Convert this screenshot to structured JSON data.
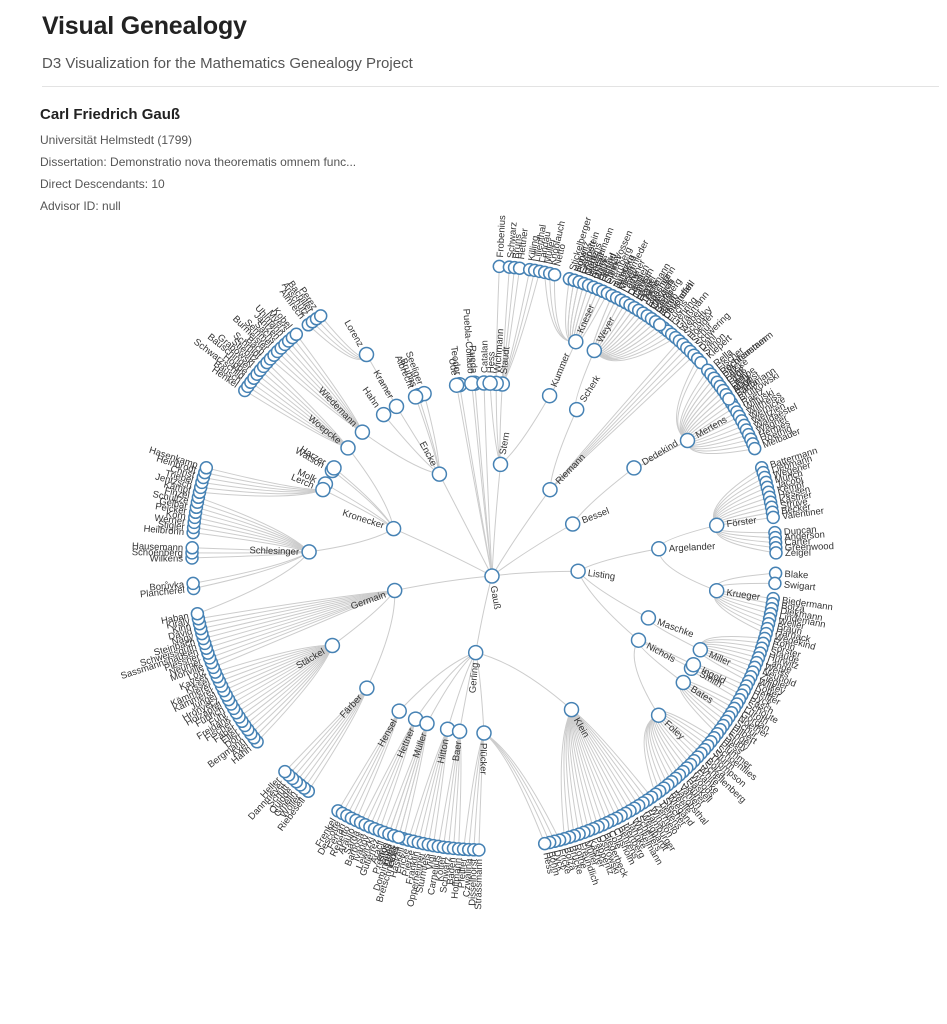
{
  "app": {
    "title": "Visual Genealogy",
    "subtitle": "D3 Visualization for the Mathematics Genealogy Project"
  },
  "selected": {
    "name": "Carl Friedrich Gauß",
    "university": "Universität Helmstedt (1799)",
    "dissertation": "Dissertation: Demonstratio nova theorematis omnem func...",
    "descendants": "Direct Descendants: 10",
    "advisor": "Advisor ID: null"
  },
  "colors": {
    "node_stroke": "#4682b4",
    "node_fill": "#ffffff",
    "link": "#cccccc",
    "text": "#333333"
  },
  "tree": {
    "root": "Gauß",
    "inner": [
      [
        "Gauß",
        1,
        100
      ],
      [
        "Encke",
        1,
        118
      ],
      [
        "Germain",
        1,
        200
      ],
      [
        "Gerling",
        1,
        265
      ],
      [
        "Plücker",
        2,
        270
      ],
      [
        "Listing",
        1,
        352
      ],
      [
        "Bessel",
        1,
        21
      ],
      [
        "Dedekind",
        2,
        31
      ],
      [
        "Riemann",
        1,
        46
      ],
      [
        "Scherk",
        2,
        58
      ],
      [
        "Stern",
        1,
        80
      ],
      [
        "Staudt",
        2,
        84
      ],
      [
        "Wichmann",
        2,
        86
      ],
      [
        "Weyer",
        3,
        62
      ],
      [
        "Kummer",
        2,
        68
      ],
      [
        "Förster",
        3,
        8
      ],
      [
        "Krueger",
        3,
        352
      ],
      [
        "Argelander",
        2,
        3
      ],
      [
        "Maschke",
        2,
        340
      ],
      [
        "Nichols",
        2,
        332
      ],
      [
        "Bates",
        3,
        328
      ],
      [
        "Miller",
        3,
        337
      ],
      [
        "Smith",
        3,
        332
      ],
      [
        "Ingold",
        3,
        333
      ],
      [
        "Foley",
        3,
        318
      ],
      [
        "Klein",
        2,
        300
      ],
      [
        "Kronecker",
        1,
        162
      ],
      [
        "Schlesinger",
        2,
        178
      ],
      [
        "Stäckel",
        2,
        210
      ],
      [
        "Färber",
        2,
        228
      ],
      [
        "Hensel",
        2,
        241
      ],
      [
        "Hettner",
        2,
        247
      ],
      [
        "Müller",
        2,
        251
      ],
      [
        "Hitton",
        2,
        258
      ],
      [
        "Baer",
        2,
        262
      ],
      [
        "Woepcke",
        2,
        141
      ],
      [
        "Watson",
        2,
        150
      ],
      [
        "Harzer",
        2,
        149
      ],
      [
        "Molk",
        2,
        155
      ],
      [
        "Lerch",
        2,
        157
      ],
      [
        "Wiedemann",
        2,
        134
      ],
      [
        "Hahn",
        2,
        125
      ],
      [
        "Kramer",
        2,
        120
      ],
      [
        "Bruhns",
        2,
        112
      ],
      [
        "Seeliger",
        2,
        110
      ],
      [
        "Albrecht",
        2,
        113
      ],
      [
        "Lorenz",
        3,
        120
      ],
      [
        "Teodor",
        2,
        98
      ],
      [
        "Rueda",
        2,
        93
      ],
      [
        "Puebla-Collado",
        2,
        94
      ],
      [
        "Catalan",
        2,
        90
      ],
      [
        "Ude",
        2,
        99
      ],
      [
        "Hess",
        2,
        88
      ],
      [
        "Mertens",
        3,
        30
      ],
      [
        "Kneser",
        3,
        67
      ]
    ],
    "leaves": [
      [
        "Frobenius",
        87
      ],
      [
        "Schwarz",
        85
      ],
      [
        "Bruns",
        84
      ],
      [
        "Hettner",
        83
      ],
      [
        "Killing",
        81
      ],
      [
        "Lilienthal",
        80
      ],
      [
        "Landau",
        79
      ],
      [
        "Müller",
        78
      ],
      [
        "Knoblauch",
        77
      ],
      [
        "Netto",
        76
      ],
      [
        "Stickelberger",
        73
      ],
      [
        "Hurwitz",
        72
      ],
      [
        "Eisenstein",
        71
      ],
      [
        "Mertens",
        70
      ],
      [
        "Kneser",
        69
      ],
      [
        "Rothe",
        68
      ],
      [
        "Hensel",
        67
      ],
      [
        "Steiner",
        66
      ],
      [
        "Ruhberg",
        64
      ],
      [
        "Meyer",
        63
      ],
      [
        "Lamé",
        62
      ],
      [
        "Dehn",
        61
      ],
      [
        "Cantor",
        60
      ],
      [
        "Hamel",
        59
      ],
      [
        "Thiele",
        58
      ],
      [
        "Lipschitz",
        57
      ],
      [
        "Casorati",
        56
      ],
      [
        "Bauer",
        55
      ],
      [
        "Hahn",
        54
      ],
      [
        "Christoffel",
        53
      ],
      [
        "Fuchs",
        52
      ],
      [
        "Gehring",
        51
      ],
      [
        "Graßmann",
        50
      ],
      [
        "Weber",
        49
      ],
      [
        "Schottky",
        48
      ],
      [
        "Hoelder",
        47
      ],
      [
        "Schur",
        46
      ],
      [
        "Schwering",
        45
      ],
      [
        "Dahl",
        44
      ],
      [
        "Simon",
        43
      ],
      [
        "Kiepert",
        42
      ],
      [
        "Pochhammer",
        38
      ],
      [
        "Pitz",
        37
      ],
      [
        "Pym",
        36
      ],
      [
        "Lampe",
        35
      ],
      [
        "August",
        34
      ],
      [
        "Bachmann",
        33
      ],
      [
        "Brutkowski",
        32
      ],
      [
        "Raetz",
        31
      ],
      [
        "Wiltuski",
        30
      ],
      [
        "Wiltheiss",
        29
      ],
      [
        "Wernicke",
        28
      ],
      [
        "Weltzien",
        27
      ],
      [
        "Waldaestel",
        26
      ],
      [
        "Wagner",
        25
      ],
      [
        "Hermes",
        24
      ],
      [
        "Roethig",
        23
      ],
      [
        "Melbauer",
        22
      ],
      [
        "Battermann",
        18
      ],
      [
        "Liebmann",
        17
      ],
      [
        "Wegener",
        16
      ],
      [
        "Münch",
        15
      ],
      [
        "Jacobi",
        14
      ],
      [
        "Kempf",
        13
      ],
      [
        "Hessen",
        12
      ],
      [
        "Kästner",
        11
      ],
      [
        "Struve",
        10
      ],
      [
        "Becker",
        9
      ],
      [
        "Valentiner",
        8
      ],
      [
        "Duncan",
        5
      ],
      [
        "Anderson",
        4
      ],
      [
        "Carter",
        3
      ],
      [
        "Greenwood",
        2
      ],
      [
        "Zeigel",
        1
      ],
      [
        "Blake",
        357
      ],
      [
        "Swigart",
        355
      ],
      [
        "Biedermann",
        352
      ],
      [
        "Bolza",
        351
      ],
      [
        "Diekmann",
        350
      ],
      [
        "Lindemann",
        349
      ],
      [
        "Weiler",
        348
      ],
      [
        "Braun",
        347
      ],
      [
        "Harnack",
        346
      ],
      [
        "Wedekind",
        345
      ],
      [
        "Rohn",
        344
      ],
      [
        "Förster",
        343
      ],
      [
        "Staude",
        342
      ],
      [
        "Hurwitz",
        341
      ],
      [
        "Lange",
        340
      ],
      [
        "Weiss",
        339
      ],
      [
        "Neuhold",
        338
      ],
      [
        "Ziegler",
        337
      ],
      [
        "Wilkey",
        336
      ],
      [
        "Kötter",
        335
      ],
      [
        "Heffter",
        334
      ],
      [
        "Dyck",
        333
      ],
      [
        "Pasch",
        332
      ],
      [
        "Schoute",
        331
      ],
      [
        "Lüroth",
        330
      ],
      [
        "Gordan",
        329
      ],
      [
        "Noether",
        328
      ],
      [
        "Schur",
        327
      ],
      [
        "Hilbert",
        326
      ],
      [
        "Engel",
        325
      ],
      [
        "Study",
        324
      ],
      [
        "Hess",
        323
      ],
      [
        "Plummer",
        322
      ],
      [
        "Schoenflies",
        321
      ],
      [
        "Sturm",
        320
      ],
      [
        "Thompson",
        319
      ],
      [
        "Bolza",
        318
      ],
      [
        "Schellenberg",
        317
      ],
      [
        "White",
        316
      ],
      [
        "Franke",
        315
      ],
      [
        "Woods",
        314
      ],
      [
        "Haskell",
        313
      ],
      [
        "Saurer",
        312
      ],
      [
        "Vahlen",
        311
      ],
      [
        "Jacobsthal",
        310
      ],
      [
        "Beelle",
        309
      ],
      [
        "Wiegand",
        308
      ],
      [
        "Stecher",
        307
      ],
      [
        "Tietjens",
        306
      ],
      [
        "Zermelo",
        305
      ],
      [
        "Winston",
        304
      ],
      [
        "Hamburger",
        303
      ],
      [
        "Weighardt",
        302
      ],
      [
        "Scheffers",
        301
      ],
      [
        "Winkelmann",
        300
      ],
      [
        "Jahnke",
        299
      ],
      [
        "Inertberg",
        298
      ],
      [
        "Behrens",
        297
      ],
      [
        "Chisholm",
        296
      ],
      [
        "Cole",
        295
      ],
      [
        "Biederbeck",
        294
      ],
      [
        "Ostrowski",
        293
      ],
      [
        "Papperitz",
        292
      ],
      [
        "Kasner",
        291
      ],
      [
        "Müller",
        290
      ],
      [
        "Freundlich",
        289
      ],
      [
        "Rothe",
        288
      ],
      [
        "Brücke",
        287
      ],
      [
        "Bolza",
        286
      ],
      [
        "Fricke",
        285
      ],
      [
        "Dyck",
        284
      ],
      [
        "Böhm",
        283
      ],
      [
        "Hess",
        282
      ],
      [
        "Preston",
        251
      ],
      [
        "Helle",
        252
      ],
      [
        "Lexis",
        253
      ],
      [
        "Haskell",
        254
      ],
      [
        "Fricke",
        255
      ],
      [
        "Pierce",
        256
      ],
      [
        "Franklin",
        257
      ],
      [
        "Opperheimer",
        258
      ],
      [
        "Sturmfels",
        259
      ],
      [
        "Vigl",
        260
      ],
      [
        "Carnelius",
        261
      ],
      [
        "Kötter",
        262
      ],
      [
        "Schwarz",
        263
      ],
      [
        "Baden",
        264
      ],
      [
        "Hoffmann",
        265
      ],
      [
        "Pfeiffer",
        266
      ],
      [
        "Czwalina",
        267
      ],
      [
        "Disselhorst",
        268
      ],
      [
        "Strassmann",
        269
      ],
      [
        "Riebesell",
        233
      ],
      [
        "Wöller",
        232
      ],
      [
        "Gmelin",
        231
      ],
      [
        "Quidde",
        230
      ],
      [
        "Schütt",
        229
      ],
      [
        "Dannmeyer",
        228
      ],
      [
        "Heller",
        227
      ],
      [
        "Hahn",
        219
      ],
      [
        "Axel",
        218
      ],
      [
        "Bergmann",
        217
      ],
      [
        "Dörr",
        216
      ],
      [
        "Eller",
        215
      ],
      [
        "Faber",
        214
      ],
      [
        "Fischer",
        213
      ],
      [
        "Freidank",
        212
      ],
      [
        "Fuhr",
        211
      ],
      [
        "Fuhrich",
        210
      ],
      [
        "Holzapfel",
        209
      ],
      [
        "Hronyecz",
        208
      ],
      [
        "Jungel",
        207
      ],
      [
        "Kämmerer",
        206
      ],
      [
        "Kämmerer",
        205
      ],
      [
        "Kissel",
        204
      ],
      [
        "Kayser",
        203
      ],
      [
        "Lotz",
        202
      ],
      [
        "Monville",
        201
      ],
      [
        "Neumer",
        200
      ],
      [
        "Plessner",
        199
      ],
      [
        "Sassmannshausen",
        198
      ],
      [
        "Schweissguth",
        197
      ],
      [
        "Steinbach",
        196
      ],
      [
        "Nagy",
        195
      ],
      [
        "Dávid",
        194
      ],
      [
        "Kinn",
        193
      ],
      [
        "Király",
        192
      ],
      [
        "Haban",
        191
      ],
      [
        "Plancherel",
        186
      ],
      [
        "Borůvka",
        185
      ],
      [
        "Wilkens",
        180
      ],
      [
        "Schoenberg",
        179
      ],
      [
        "Hausemann",
        178
      ],
      [
        "Heilbronn",
        175
      ],
      [
        "Stigler",
        174
      ],
      [
        "Werner",
        173
      ],
      [
        "Korn",
        172
      ],
      [
        "Peicker",
        171
      ],
      [
        "Gelbar",
        170
      ],
      [
        "Schultze",
        169
      ],
      [
        "Finzel",
        168
      ],
      [
        "Kämpf",
        167
      ],
      [
        "Jentzsch",
        166
      ],
      [
        "Triebel",
        165
      ],
      [
        "Christ",
        164
      ],
      [
        "Heinbrodt",
        163
      ],
      [
        "Hasenkamp",
        162
      ],
      [
        "Henkel",
        145
      ],
      [
        "Bausch",
        144
      ],
      [
        "Schwarzschild",
        143
      ],
      [
        "Hoppe",
        142
      ],
      [
        "Bauschinger",
        141
      ],
      [
        "Grabowski",
        140
      ],
      [
        "Stiebitz",
        139
      ],
      [
        "Schmidt",
        138
      ],
      [
        "Bach",
        137
      ],
      [
        "Burmeister",
        136
      ],
      [
        "Semmel",
        135
      ],
      [
        "Sachs",
        134
      ],
      [
        "Jantzen",
        133
      ],
      [
        "Uhlmann",
        132
      ],
      [
        "Myers",
        131
      ],
      [
        "Kobel",
        130
      ],
      [
        "Almrech",
        127
      ],
      [
        "Anschütz",
        126
      ],
      [
        "Bachiller",
        125
      ],
      [
        "Perez",
        124
      ],
      [
        "Kober",
        72
      ],
      [
        "Geppert",
        71
      ],
      [
        "Gautz",
        70
      ],
      [
        "Heischmann",
        69
      ],
      [
        "Weyl",
        68
      ],
      [
        "Freund",
        67
      ],
      [
        "Cohn-Vossen",
        66
      ],
      [
        "Sternberg",
        65
      ],
      [
        "Juretzka",
        64
      ],
      [
        "Koschmieder",
        63
      ],
      [
        "Loewner",
        62
      ],
      [
        "Laudien",
        61
      ],
      [
        "Jarosch",
        60
      ],
      [
        "Feyer",
        59
      ],
      [
        "Teichmann",
        58
      ],
      [
        "Raasmann",
        57
      ],
      [
        "Weyrich",
        56
      ],
      [
        "Gießberg",
        55
      ],
      [
        "Jacob",
        54
      ],
      [
        "Devendahl",
        53
      ],
      [
        "Rella",
        40
      ],
      [
        "Fischer",
        39
      ],
      [
        "Rechtenstamm",
        38
      ],
      [
        "Falske",
        37
      ],
      [
        "Groß",
        36
      ],
      [
        "Helly",
        35
      ],
      [
        "Mayr",
        34
      ],
      [
        "Fanta",
        33
      ],
      [
        "Frenkel",
        240
      ],
      [
        "Descotte",
        241
      ],
      [
        "Ferrari",
        242
      ],
      [
        "Repetto",
        243
      ],
      [
        "Araujo",
        244
      ],
      [
        "Sarda",
        245
      ],
      [
        "Barbosa",
        246
      ],
      [
        "Ivanov",
        247
      ],
      [
        "Lewitzki",
        248
      ],
      [
        "Gutiérrez",
        249
      ],
      [
        "Aracil",
        250
      ],
      [
        "Ríos",
        251
      ],
      [
        "Domínguez",
        252
      ],
      [
        "Bretschneider",
        253
      ]
    ]
  }
}
